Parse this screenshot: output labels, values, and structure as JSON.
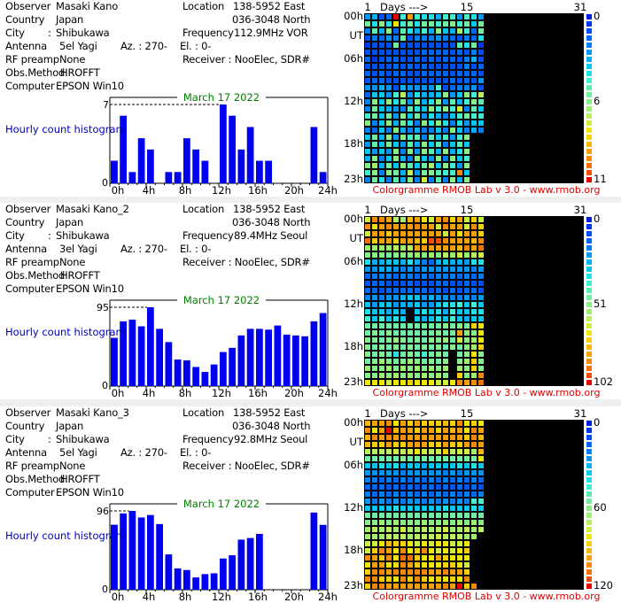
{
  "scale_colors": [
    "#0020e0",
    "#0038f0",
    "#0050f8",
    "#0068f8",
    "#0080f8",
    "#0098f8",
    "#00b0f8",
    "#00c8f0",
    "#20e0e8",
    "#40f0d0",
    "#58f0b0",
    "#70f0a0",
    "#88f088",
    "#a0f070",
    "#b8f060",
    "#d0f040",
    "#f0e800",
    "#f8d000",
    "#f8b800",
    "#f8a000",
    "#f88800",
    "#f87000",
    "#f05000",
    "#e80000"
  ],
  "colors": {
    "bar": "#0000f0",
    "date": "#008000",
    "hist_label": "#0000c0",
    "footer": "#e00000",
    "nodata": "#000000"
  },
  "panels": [
    {
      "info": {
        "observer_label": "Observer",
        "observer": "Masaki Kano",
        "country_label": "Country",
        "country": "Japan",
        "city_label": "City",
        "city_sep": ":",
        "city": "Shibukawa",
        "antenna_label": "Antenna",
        "antenna": "5el Yagi",
        "az": "Az. : 270-",
        "el": "El. : 0-",
        "rf_label": "RF preamp",
        "rf": "None",
        "obs_label": "Obs.Method",
        "obs": "HROFFT",
        "computer_label": "Computer",
        "computer": "EPSON Win10",
        "location_label": "Location",
        "location_east": "138-5952 East",
        "location_north": "036-3048 North",
        "frequency_label": "Frequency",
        "frequency": "112.9MHz VOR",
        "receiver": "Receiver : NooElec, SDR#"
      },
      "chart_data": {
        "type": "bar",
        "title": "March 17 2022",
        "ylabel": "Hourly count histogram",
        "ymax_label": "7",
        "ymin_label": "0",
        "ylim": [
          0,
          7
        ],
        "x_tick_labels": [
          "0h",
          "4h",
          "8h",
          "12h",
          "16h",
          "20h",
          "24h"
        ],
        "categories": [
          "0h",
          "1h",
          "2h",
          "3h",
          "4h",
          "5h",
          "6h",
          "7h",
          "8h",
          "9h",
          "10h",
          "11h",
          "12h",
          "13h",
          "14h",
          "15h",
          "16h",
          "17h",
          "18h",
          "19h",
          "20h",
          "21h",
          "22h",
          "23h"
        ],
        "values": [
          2,
          6,
          1,
          4,
          3,
          0,
          1,
          1,
          4,
          3,
          2,
          0,
          7,
          6,
          3,
          5,
          2,
          2,
          0,
          0,
          0,
          0,
          5,
          1
        ]
      },
      "colorgramme": {
        "type": "heatmap",
        "days_label": "Days --->",
        "day_ticks": [
          "1",
          "15",
          "31"
        ],
        "hour_labels": [
          "00h",
          "UT",
          "06h",
          "12h",
          "18h",
          "23h"
        ],
        "scale_min": "0",
        "scale_mid": "6",
        "scale_max": "11",
        "footer": "Colorgramme RMOB Lab v 3.0 - www.rmob.org",
        "days_with_data": 17,
        "rows": [
          "5623n9j9886995985",
          "b8c8g9b8bb9bc9b7b",
          "4a6c3a8696c76d93b",
          "24354b24445432438",
          "1222b22222222a8b1",
          "22222222333323242",
          "31233223232332462",
          "22223232322222423",
          "32323322333323332",
          "23322222222232325",
          "55652655559234452",
          "37759e58667c57c9e",
          "4c7c8b5c68c5a69ca",
          "4b7654a87c9c9f4a7",
          "9b7b5c7b586479b99",
          "c47c6b84c8c848577",
          "4374c6464474c7464",
          "7b6c5c9a4a7959c...",
          "5a7b75a6c7a47a7..",
          "7575c4c5ca6c68c..",
          "6c47c64c75c4c79..",
          "cd6b7ca7bd7c95c..",
          "9c4cb6e5bca99u7..",
          "4b84a6c4f4a4c6c.."
        ]
      }
    },
    {
      "info": {
        "observer_label": "Observer",
        "observer": "Masaki Kano_2",
        "country_label": "Country",
        "country": "Japan",
        "city_label": "City",
        "city_sep": ":",
        "city": "Shibukawa",
        "antenna_label": "Antenna",
        "antenna": "3el Yagi",
        "az": "Az. : 270-",
        "el": "El. : 0-",
        "rf_label": "RF preamp",
        "rf": "None",
        "obs_label": "Obs.Method",
        "obs": "HROFFT",
        "computer_label": "Computer",
        "computer": "EPSON Win10",
        "location_label": "Location",
        "location_east": "138-5952 East",
        "location_north": "036-3048 North",
        "frequency_label": "Frequency",
        "frequency": "89.4MHz Seoul",
        "receiver": "Receiver : NooElec, SDR#"
      },
      "chart_data": {
        "type": "bar",
        "title": "March 17 2022",
        "ylabel": "Hourly count histogram",
        "ymax_label": "95",
        "ymin_label": "0",
        "ylim": [
          0,
          95
        ],
        "x_tick_labels": [
          "0h",
          "4h",
          "8h",
          "12h",
          "16h",
          "20h",
          "24h"
        ],
        "categories": [
          "0h",
          "1h",
          "2h",
          "3h",
          "4h",
          "5h",
          "6h",
          "7h",
          "8h",
          "9h",
          "10h",
          "11h",
          "12h",
          "13h",
          "14h",
          "15h",
          "16h",
          "17h",
          "18h",
          "19h",
          "20h",
          "21h",
          "22h",
          "23h"
        ],
        "values": [
          58,
          78,
          80,
          72,
          95,
          69,
          53,
          32,
          31,
          23,
          17,
          26,
          41,
          46,
          61,
          69,
          69,
          68,
          73,
          62,
          61,
          60,
          78,
          88
        ]
      },
      "colorgramme": {
        "type": "heatmap",
        "days_label": "Days --->",
        "day_ticks": [
          "1",
          "15",
          "31"
        ],
        "hour_labels": [
          "00h",
          "UT",
          "06h",
          "12h",
          "18h",
          "23h"
        ],
        "scale_min": "0",
        "scale_mid": "51",
        "scale_max": "102",
        "footer": "Colorgramme RMOB Lab v 3.0 - www.rmob.org",
        "days_with_data": 17,
        "rows": [
          "fkkjedijgfjkhjfhf",
          "kgjkjjjkjjfkjjfkh",
          "fjjhjjjjjjjfjgjjh",
          "lhjjhjjihmmkjjjik",
          "ddddedejjjjjjikjl",
          "cccbcccdcdcedfdef",
          "86677686436766588",
          "55665454555555545",
          "34443443434443434",
          "23322232223322322",
          "33233333323232332",
          "45455677565544545",
          "75775667557889797",
          "877676.7878697788",
          "979787.7678797677",
          "bbbbbbbbbbbcbcbhg",
          "bcbcbbbbbbcbbjccg",
          "ccbcdcbcbccdbfcdg",
          "cbcbcbcbcbcbcbcdh",
          "cbcb8bcb9bcb.bcgc",
          "bcdcbcdcbcbc.cdhc",
          "dccdcdcdcdcd.dchc",
          "ccdcdcdcdcdc.hcdk",
          "gggfgghgggffgkjkl"
        ]
      }
    },
    {
      "info": {
        "observer_label": "Observer",
        "observer": "Masaki Kano_3",
        "country_label": "Country",
        "country": "Japan",
        "city_label": "City",
        "city_sep": ":",
        "city": "Shibukawa",
        "antenna_label": "Antenna",
        "antenna": "5el Yagi",
        "az": "Az. : 270-",
        "el": "El. : 0-",
        "rf_label": "RF preamp",
        "rf": "None",
        "obs_label": "Obs.Method",
        "obs": "HROFFT",
        "computer_label": "Computer",
        "computer": "EPSON Win10",
        "location_label": "Location",
        "location_east": "138-5952 East",
        "location_north": "036-3048 North",
        "frequency_label": "Frequency",
        "frequency": "92.8MHz Seoul",
        "receiver": "Receiver : NooElec, SDR#"
      },
      "chart_data": {
        "type": "bar",
        "title": "March 17 2022",
        "ylabel": "Hourly count histogram",
        "ymax_label": "96",
        "ymin_label": "0",
        "ylim": [
          0,
          96
        ],
        "x_tick_labels": [
          "0h",
          "4h",
          "8h",
          "12h",
          "16h",
          "20h",
          "24h"
        ],
        "categories": [
          "0h",
          "1h",
          "2h",
          "3h",
          "4h",
          "5h",
          "6h",
          "7h",
          "8h",
          "9h",
          "10h",
          "11h",
          "12h",
          "13h",
          "14h",
          "15h",
          "16h",
          "17h",
          "18h",
          "19h",
          "20h",
          "21h",
          "22h",
          "23h"
        ],
        "values": [
          79,
          93,
          96,
          88,
          91,
          80,
          43,
          26,
          24,
          15,
          19,
          20,
          38,
          42,
          61,
          63,
          68,
          0,
          0,
          0,
          0,
          0,
          94,
          79
        ]
      },
      "colorgramme": {
        "type": "heatmap",
        "days_label": "Days --->",
        "day_ticks": [
          "1",
          "15",
          "31"
        ],
        "hour_labels": [
          "00h",
          "UT",
          "06h",
          "12h",
          "18h",
          "23h"
        ],
        "scale_min": "0",
        "scale_mid": "60",
        "scale_max": "120",
        "footer": "Colorgramme RMOB Lab v 3.0 - www.rmob.org",
        "days_with_data": 17,
        "rows": [
          "ijjkgjhjhhhihkghg",
          "kgjnijjhjjhjijgkj",
          "ikjkjkjjjjjjjjhki",
          "ihhjhhjjjhhjhhjkj",
          "eeeefefgfefheffdi",
          "bbbbbcbbbbbbbbbbg",
          "77878677677778787",
          "55555455555454555",
          "44343434343434343",
          "33323232332323232",
          "43434343434343434",
          "54545455454545499",
          "77778777777877787",
          "bbbbbbbbbbbbbbbbb",
          "ccdcdcccdccdcdcdc",
          "dededfddedefddede",
          "dddeeedeeefeeedd.",
          "ffgihhgfgfggffg..",
          "fhkjgkghkgfgfgh..",
          "kjhkgllhggjhggg..",
          "gjjggkjhggghhgf..",
          "hkkjkkkkkjjkjjh..",
          "kkhhgkhkhghghgk..",
          "hkkjjjjjjjjkjnhk."
        ]
      }
    }
  ]
}
